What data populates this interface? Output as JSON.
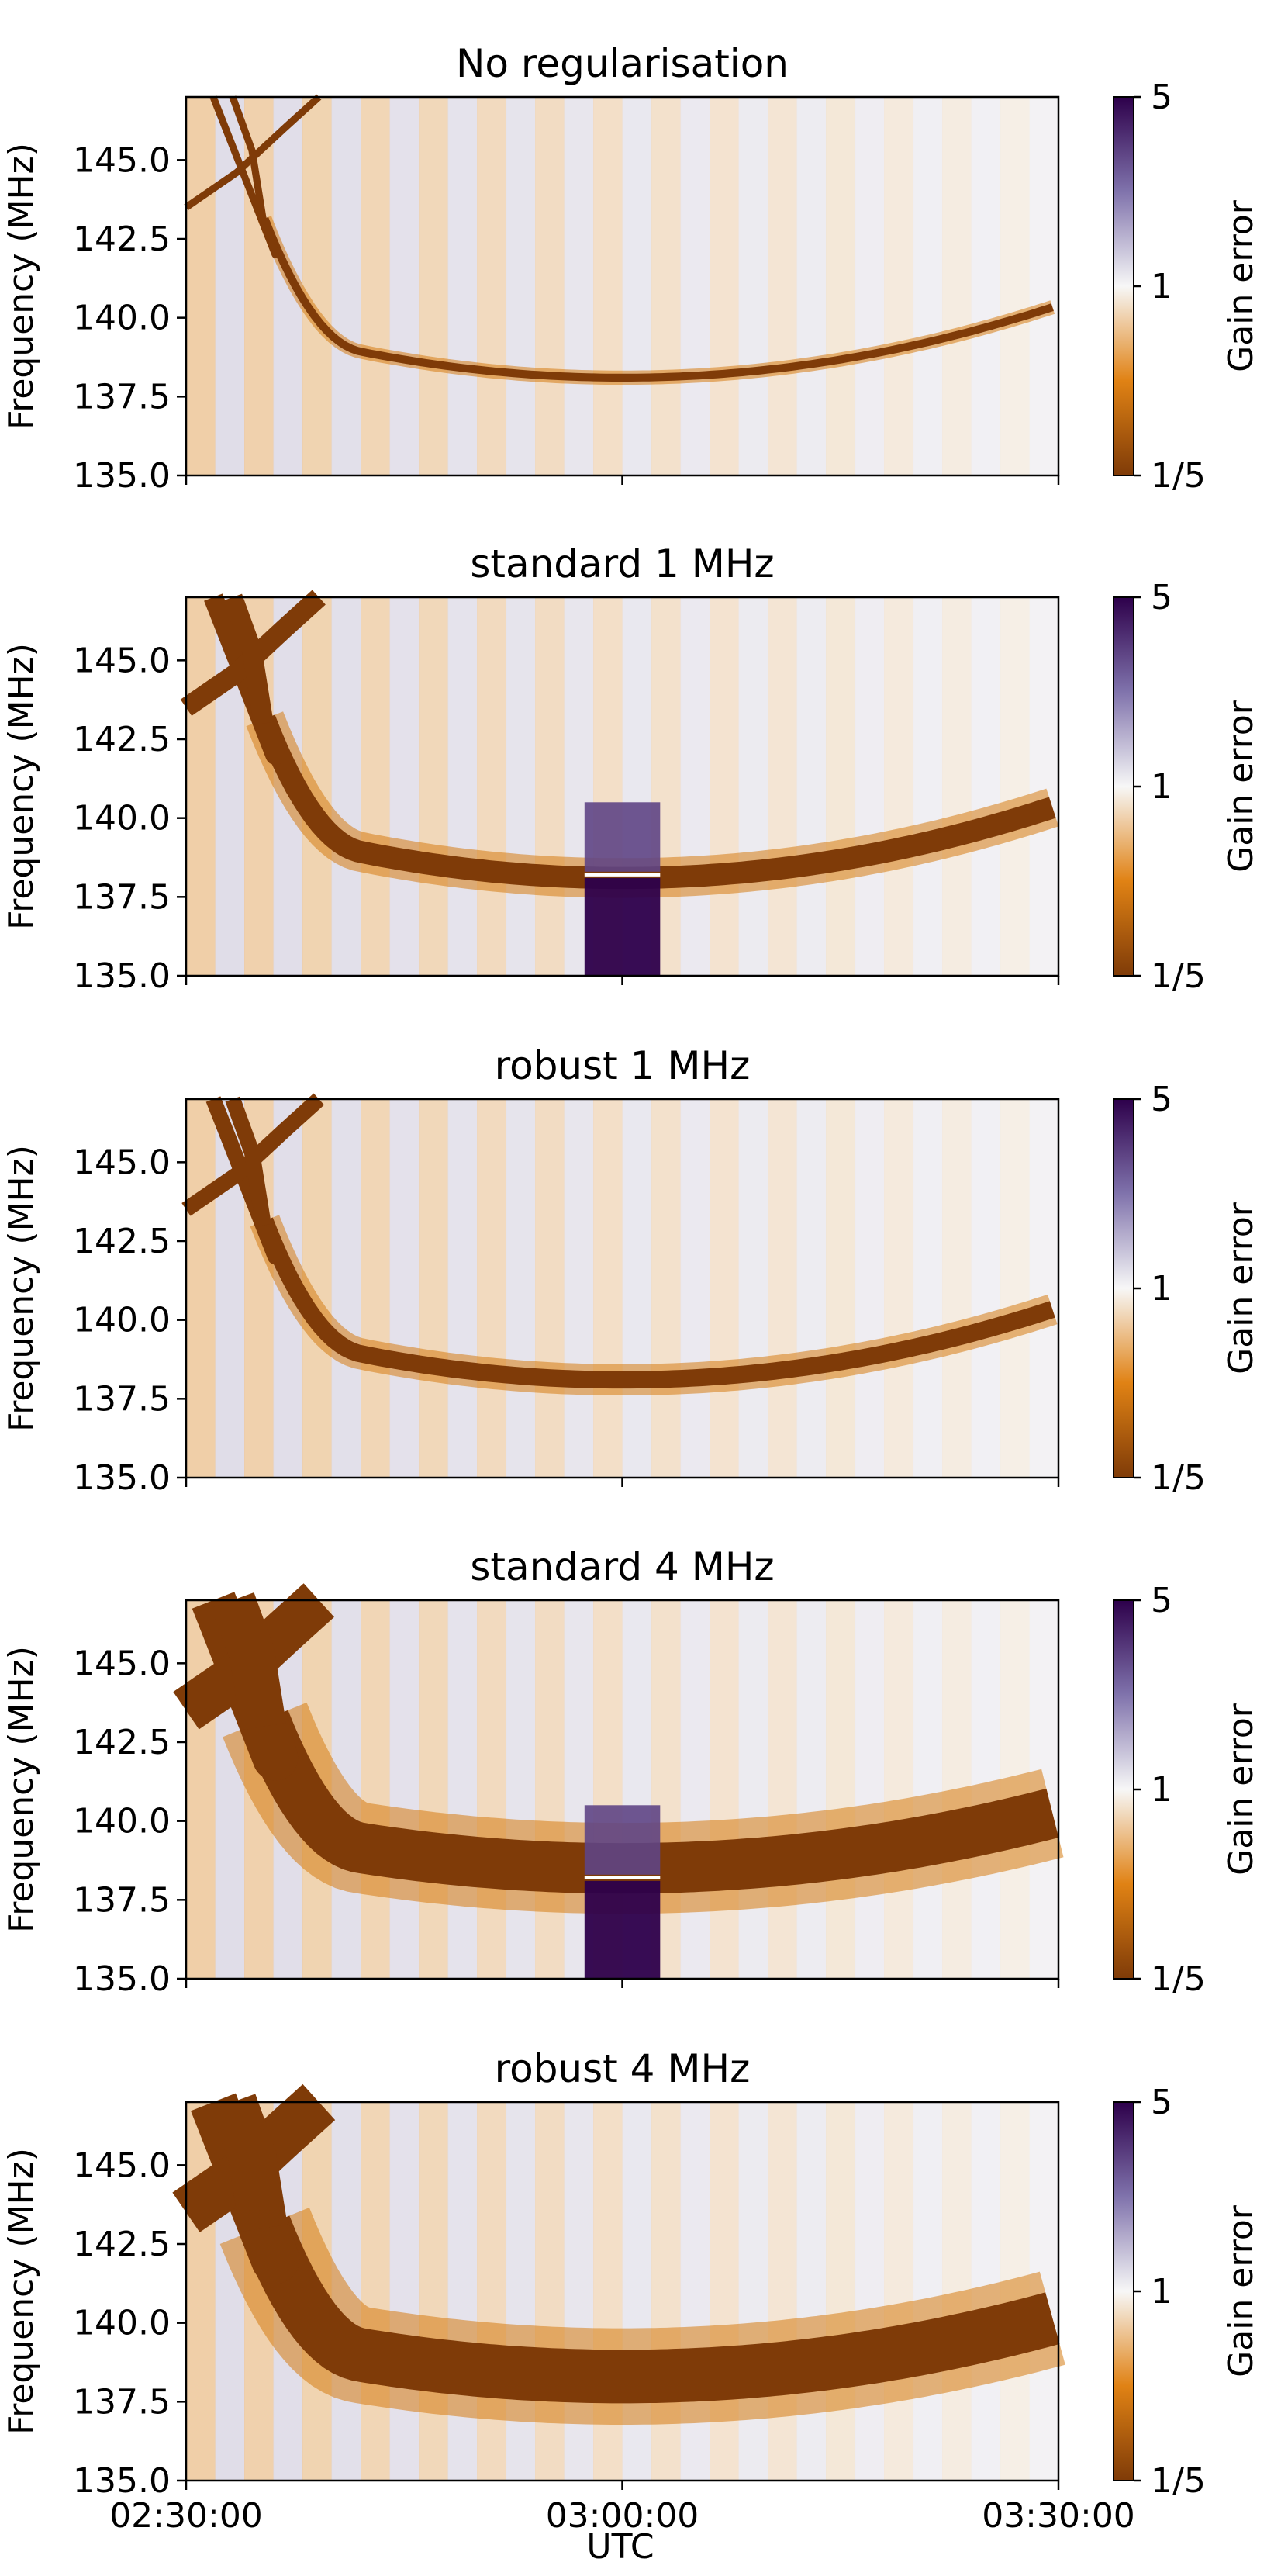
{
  "figure": {
    "xlabel": "UTC",
    "x_ticks": [
      "02:30:00",
      "03:00:00",
      "03:30:00"
    ],
    "colorscale": {
      "name": "PuOr",
      "low_color": "#7f3b08",
      "mid_color": "#f7f7f7",
      "high_color": "#2d004b"
    }
  },
  "chart_data": [
    {
      "type": "heatmap",
      "title": "No regularisation",
      "xlabel": "UTC",
      "ylabel": "Frequency (MHz)",
      "xlim": [
        "02:30:00",
        "03:30:00"
      ],
      "ylim": [
        135.0,
        147.0
      ],
      "y_ticks": [
        "135.0",
        "137.5",
        "140.0",
        "142.5",
        "145.0"
      ],
      "colorbar": {
        "label": "Gain error",
        "ticks": [
          "1/5",
          "1",
          "5"
        ],
        "scale": "log",
        "range": [
          0.2,
          5
        ]
      },
      "time_bins": 30,
      "feature": {
        "arc_min_freq_mhz": 138.1,
        "arc_end_freq_mhz": 140.4,
        "band_width_mhz": 0.25,
        "dip_at": "03:00:00",
        "dip_strength": 0.3
      }
    },
    {
      "type": "heatmap",
      "title": "standard 1 MHz",
      "xlabel": "UTC",
      "ylabel": "Frequency (MHz)",
      "xlim": [
        "02:30:00",
        "03:30:00"
      ],
      "ylim": [
        135.0,
        147.0
      ],
      "y_ticks": [
        "135.0",
        "137.5",
        "140.0",
        "142.5",
        "145.0"
      ],
      "colorbar": {
        "label": "Gain error",
        "ticks": [
          "1/5",
          "1",
          "5"
        ],
        "scale": "log",
        "range": [
          0.2,
          5
        ]
      },
      "time_bins": 30,
      "feature": {
        "arc_min_freq_mhz": 138.1,
        "arc_end_freq_mhz": 140.4,
        "band_width_mhz": 0.7,
        "dip_at": "03:00:00",
        "dip_strength": 0.1,
        "overshoot_at": "03:00:00",
        "overshoot_max_gain": 5
      }
    },
    {
      "type": "heatmap",
      "title": "robust 1 MHz",
      "xlabel": "UTC",
      "ylabel": "Frequency (MHz)",
      "xlim": [
        "02:30:00",
        "03:30:00"
      ],
      "ylim": [
        135.0,
        147.0
      ],
      "y_ticks": [
        "135.0",
        "137.5",
        "140.0",
        "142.5",
        "145.0"
      ],
      "colorbar": {
        "label": "Gain error",
        "ticks": [
          "1/5",
          "1",
          "5"
        ],
        "scale": "log",
        "range": [
          0.2,
          5
        ]
      },
      "time_bins": 30,
      "feature": {
        "arc_min_freq_mhz": 138.1,
        "arc_end_freq_mhz": 140.4,
        "band_width_mhz": 0.55,
        "dip_at": "03:00:00",
        "dip_strength": 0.0
      }
    },
    {
      "type": "heatmap",
      "title": "standard 4 MHz",
      "xlabel": "UTC",
      "ylabel": "Frequency (MHz)",
      "xlim": [
        "02:30:00",
        "03:30:00"
      ],
      "ylim": [
        135.0,
        147.0
      ],
      "y_ticks": [
        "135.0",
        "137.5",
        "140.0",
        "142.5",
        "145.0"
      ],
      "colorbar": {
        "label": "Gain error",
        "ticks": [
          "1/5",
          "1",
          "5"
        ],
        "scale": "log",
        "range": [
          0.2,
          5
        ]
      },
      "time_bins": 30,
      "feature": {
        "arc_min_freq_mhz": 138.5,
        "arc_end_freq_mhz": 140.3,
        "band_width_mhz": 1.6,
        "dip_at": "03:00:00",
        "dip_strength": 0.1,
        "overshoot_at": "03:00:00",
        "overshoot_max_gain": 5
      }
    },
    {
      "type": "heatmap",
      "title": "robust 4 MHz",
      "xlabel": "UTC",
      "ylabel": "Frequency (MHz)",
      "xlim": [
        "02:30:00",
        "03:30:00"
      ],
      "ylim": [
        135.0,
        147.0
      ],
      "y_ticks": [
        "135.0",
        "137.5",
        "140.0",
        "142.5",
        "145.0"
      ],
      "colorbar": {
        "label": "Gain error",
        "ticks": [
          "1/5",
          "1",
          "5"
        ],
        "scale": "log",
        "range": [
          0.2,
          5
        ]
      },
      "time_bins": 30,
      "feature": {
        "arc_min_freq_mhz": 138.3,
        "arc_end_freq_mhz": 140.2,
        "band_width_mhz": 1.7,
        "dip_at": "03:00:00",
        "dip_strength": 0.0
      }
    }
  ]
}
